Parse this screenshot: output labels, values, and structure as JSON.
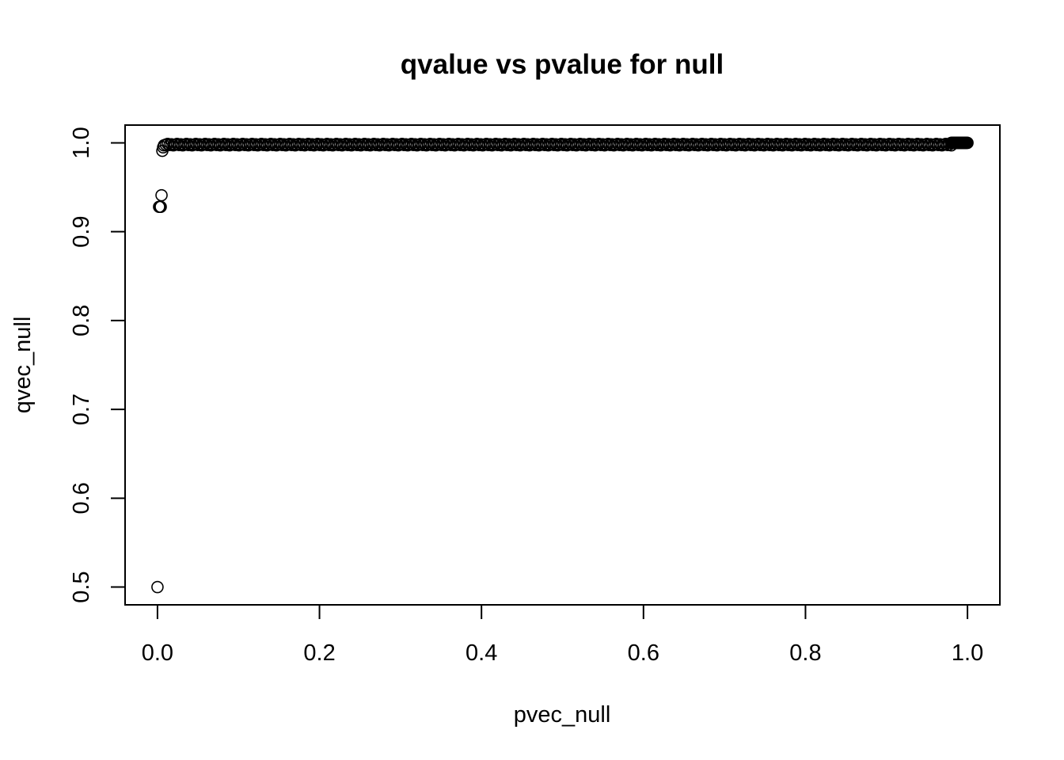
{
  "chart_data": {
    "type": "scatter",
    "title": "qvalue vs pvalue for null",
    "xlabel": "pvec_null",
    "ylabel": "qvec_null",
    "xlim": [
      -0.04,
      1.04
    ],
    "ylim": [
      0.48,
      1.02
    ],
    "x_ticks": [
      0.0,
      0.2,
      0.4,
      0.6,
      0.8,
      1.0
    ],
    "x_tick_labels": [
      "0.0",
      "0.2",
      "0.4",
      "0.6",
      "0.8",
      "1.0"
    ],
    "y_ticks": [
      0.5,
      0.6,
      0.7,
      0.8,
      0.9,
      1.0
    ],
    "y_tick_labels": [
      "0.5",
      "0.6",
      "0.7",
      "0.8",
      "0.9",
      "1.0"
    ],
    "grid": false,
    "marker": "open-circle",
    "points": [
      {
        "x": 0.0,
        "y": 0.5
      },
      {
        "x": 0.002,
        "y": 0.928
      },
      {
        "x": 0.003,
        "y": 0.928
      },
      {
        "x": 0.004,
        "y": 0.928
      },
      {
        "x": 0.005,
        "y": 0.941
      },
      {
        "x": 0.006,
        "y": 0.991
      },
      {
        "x": 0.007,
        "y": 0.995
      }
    ],
    "dense_band": {
      "description_free": true,
      "x_from": 0.008,
      "x_to": 0.98,
      "y": 0.998
    },
    "upper_cluster": {
      "x_from": 0.98,
      "x_to": 1.0,
      "y": 1.0
    }
  }
}
